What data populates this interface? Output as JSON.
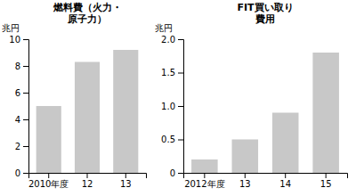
{
  "chart_data": [
    {
      "type": "bar",
      "title": [
        "燃料費（火力・",
        "原子力）"
      ],
      "y_label": "兆円",
      "categories": [
        "2010年度",
        "12",
        "13"
      ],
      "values": [
        5.0,
        8.3,
        9.2
      ],
      "color": "#c8c8c8",
      "ylim": [
        0,
        10
      ],
      "yticks": [
        0,
        2,
        4,
        6,
        8,
        10
      ]
    },
    {
      "type": "bar",
      "title": [
        "FIT買い取り",
        "費用"
      ],
      "y_label": "兆円",
      "categories": [
        "2012年度",
        "13",
        "14",
        "15"
      ],
      "values": [
        0.2,
        0.5,
        0.9,
        1.8
      ],
      "color": "#c8c8c8",
      "ylim": [
        0,
        2.0
      ],
      "yticks": [
        0,
        0.5,
        {
          "value": 1.0,
          "label": "1.0"
        },
        1.5,
        {
          "value": 2.0,
          "label": "2.0"
        }
      ]
    }
  ]
}
